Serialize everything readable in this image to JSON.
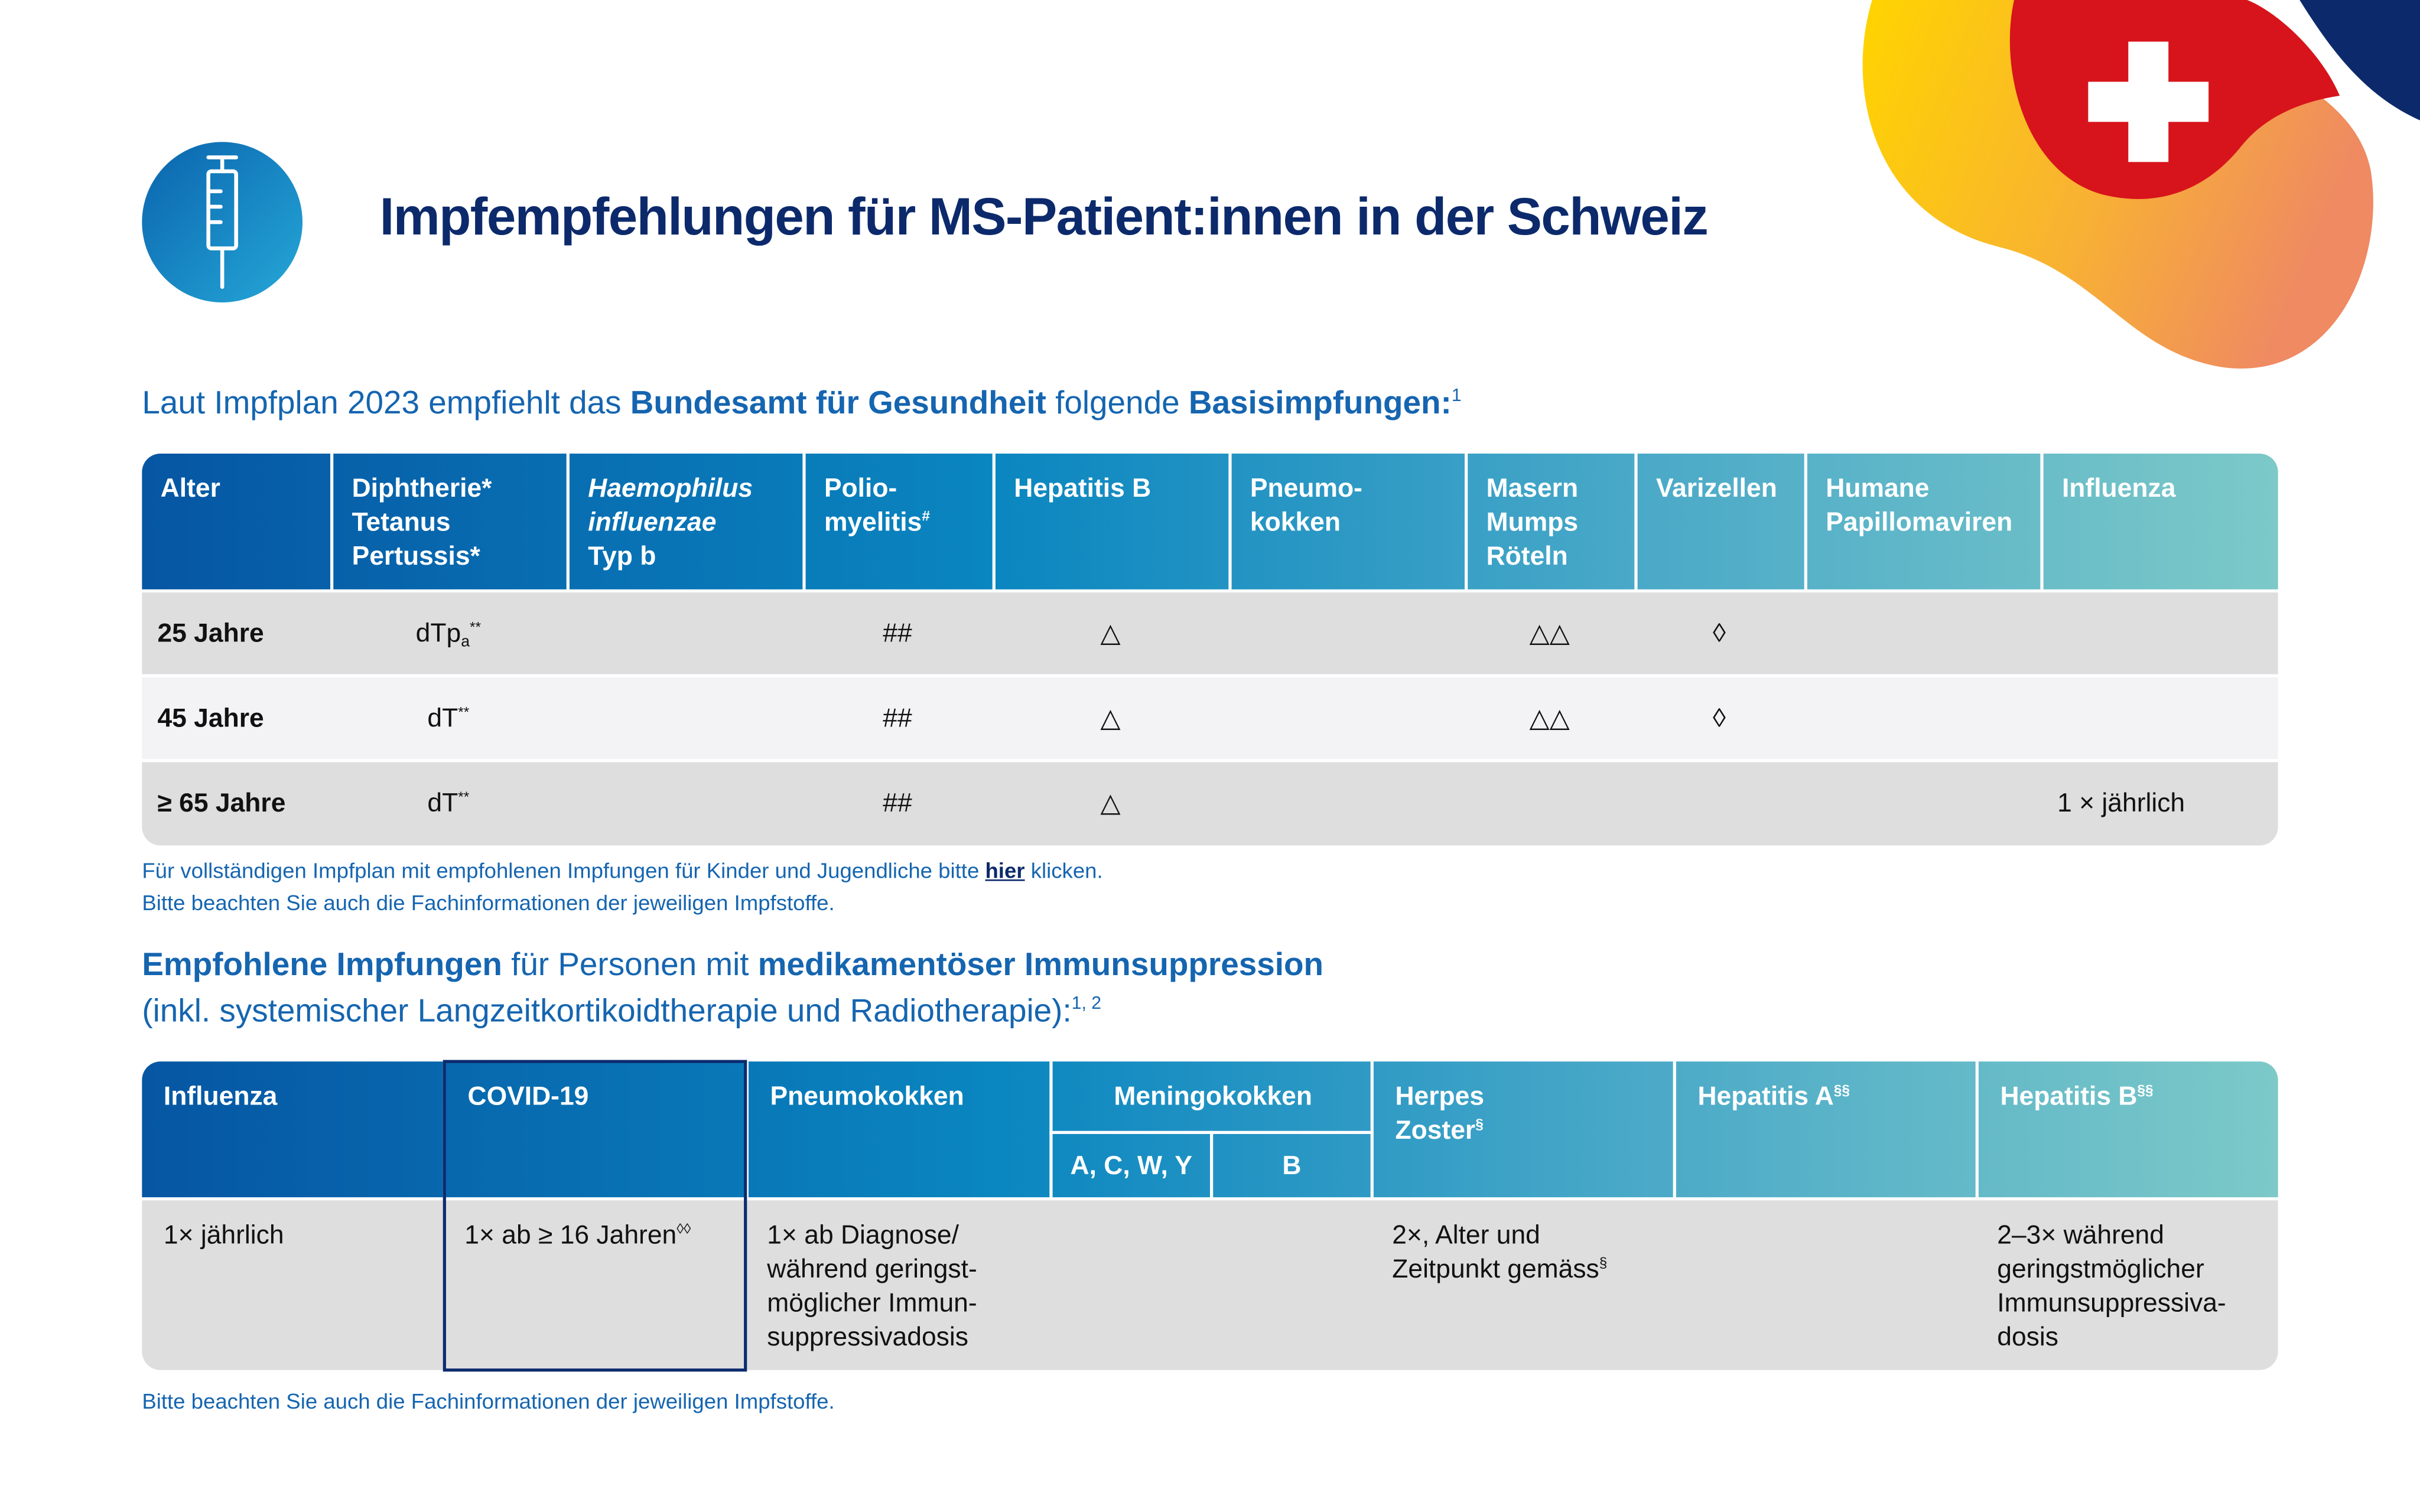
{
  "header": {
    "title": "Impfempfehlungen für MS-Patient:innen in der Schweiz"
  },
  "section1": {
    "heading": {
      "parts": [
        "Laut Impfplan 2023 empfiehlt das ",
        "Bundesamt für Gesundheit",
        " folgende ",
        "Basisimpfungen:"
      ],
      "sup": "1"
    },
    "table": {
      "headers": [
        {
          "lines": [
            "Alter"
          ]
        },
        {
          "lines": [
            "Diphtherie*",
            "Tetanus",
            "Pertussis*"
          ]
        },
        {
          "lines": [
            "Haemophilus",
            "influenzae",
            "Typ b"
          ]
        },
        {
          "lines": [
            "Polio-",
            "myelitis"
          ],
          "sup": "#"
        },
        {
          "lines": [
            "Hepatitis B"
          ]
        },
        {
          "lines": [
            "Pneumo-",
            "kokken"
          ]
        },
        {
          "lines": [
            "Masern",
            "Mumps",
            "Röteln"
          ]
        },
        {
          "lines": [
            "Varizellen"
          ]
        },
        {
          "lines": [
            "Humane",
            "Papillomaviren"
          ]
        },
        {
          "lines": [
            "Influenza"
          ]
        }
      ],
      "rows": [
        [
          "25 Jahre",
          {
            "lines": [
              "dTp"
            ],
            "sub": "a",
            "sup": "**"
          },
          null,
          "##",
          "△",
          null,
          "△△",
          "◊",
          null,
          null
        ],
        [
          "45 Jahre",
          {
            "lines": [
              "dT"
            ],
            "sup": "**"
          },
          null,
          "##",
          "△",
          null,
          "△△",
          "◊",
          null,
          null
        ],
        [
          "≥ 65 Jahre",
          {
            "lines": [
              "dT"
            ],
            "sup": "**"
          },
          null,
          "##",
          "△",
          null,
          null,
          null,
          null,
          "1 × jährlich"
        ]
      ]
    },
    "notes": {
      "line1": [
        "Für vollständigen Impfplan mit empfohlenen Impfungen für Kinder und Jugendliche bitte ",
        "hier",
        " klicken."
      ],
      "line2": "Bitte beachten Sie auch die Fachinformationen der jeweiligen Impfstoffe."
    }
  },
  "section2": {
    "heading": {
      "parts": [
        "Empfohlene Impfungen",
        " für Personen mit ",
        "medikamentöser Immunsuppression"
      ],
      "line2": "(inkl. systemischer Langzeitkortikoidtherapie und Radiotherapie):",
      "sup": "1, 2"
    },
    "table": {
      "headers": [
        {
          "lines": [
            "Influenza"
          ]
        },
        {
          "lines": [
            "COVID-19"
          ]
        },
        {
          "lines": [
            "Pneumokokken"
          ]
        },
        {
          "lines": [
            "Meningokokken"
          ],
          "sub_headers": [
            "A, C, W, Y",
            "B"
          ]
        },
        {
          "lines": [
            "Herpes",
            "Zoster"
          ],
          "sup": "§"
        },
        {
          "lines": [
            "Hepatitis A"
          ],
          "sup": "§§"
        },
        {
          "lines": [
            "Hepatitis B"
          ],
          "sup": "§§"
        }
      ],
      "row": [
        "1× jährlich",
        {
          "lines": [
            "1× ab ≥ 16 Jahren"
          ],
          "sup": "◊◊"
        },
        {
          "lines": [
            "1× ab Diagnose/",
            "während geringst-",
            "möglicher Immun-",
            "suppressivadosis"
          ]
        },
        null,
        null,
        {
          "lines": [
            "2×, Alter und",
            "Zeitpunkt gemäss"
          ],
          "sup": "§"
        },
        null,
        {
          "lines": [
            "2–3× während",
            "geringstmöglicher",
            "Immunsuppressiva-",
            "dosis"
          ]
        }
      ]
    },
    "note": "Bitte beachten Sie auch die Fachinformationen der jeweiligen Impfstoffe."
  }
}
